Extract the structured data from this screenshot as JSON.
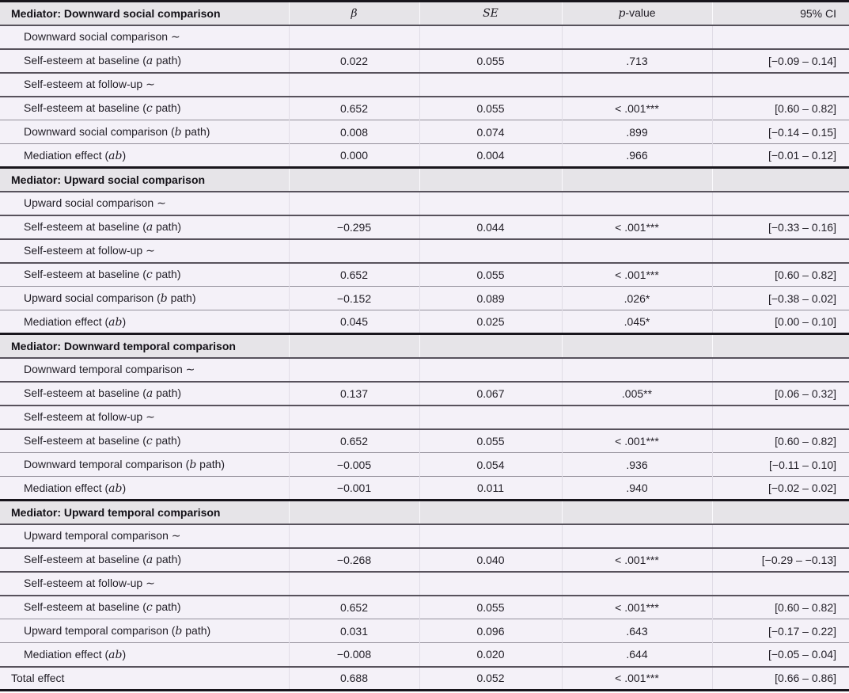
{
  "table": {
    "columns": {
      "beta": "β",
      "se": "SE",
      "p_pre": "p",
      "p_post": "-value",
      "ci": "95% CI"
    },
    "sections": [
      {
        "title": "Mediator: Downward social comparison",
        "rows": [
          {
            "type": "sub",
            "pre": "Downward social comparison ∼",
            "it": "",
            "post": "",
            "beta": "",
            "se": "",
            "p": "",
            "ci": ""
          },
          {
            "type": "data",
            "pre": "Self-esteem at baseline (",
            "it": "a",
            "post": " path)",
            "beta": "0.022",
            "se": "0.055",
            "p": ".713",
            "ci": "[−0.09 – 0.14]"
          },
          {
            "type": "sub",
            "pre": "Self-esteem at follow-up ∼",
            "it": "",
            "post": "",
            "beta": "",
            "se": "",
            "p": "",
            "ci": ""
          },
          {
            "type": "data",
            "pre": "Self-esteem at baseline (",
            "it": "c",
            "post": " path)",
            "beta": "0.652",
            "se": "0.055",
            "p": "< .001***",
            "ci": "[0.60 – 0.82]"
          },
          {
            "type": "data",
            "pre": "Downward social comparison (",
            "it": "b",
            "post": " path)",
            "beta": "0.008",
            "se": "0.074",
            "p": ".899",
            "ci": "[−0.14 – 0.15]"
          },
          {
            "type": "data",
            "pre": "Mediation effect (",
            "it": "ab",
            "post": ")",
            "beta": "0.000",
            "se": "0.004",
            "p": ".966",
            "ci": "[−0.01 – 0.12]"
          }
        ]
      },
      {
        "title": "Mediator: Upward social comparison",
        "rows": [
          {
            "type": "sub",
            "pre": "Upward social comparison ∼",
            "it": "",
            "post": "",
            "beta": "",
            "se": "",
            "p": "",
            "ci": ""
          },
          {
            "type": "data",
            "pre": "Self-esteem at baseline (",
            "it": "a",
            "post": " path)",
            "beta": "−0.295",
            "se": "0.044",
            "p": "< .001***",
            "ci": "[−0.33 – 0.16]"
          },
          {
            "type": "sub",
            "pre": "Self-esteem at follow-up ∼",
            "it": "",
            "post": "",
            "beta": "",
            "se": "",
            "p": "",
            "ci": ""
          },
          {
            "type": "data",
            "pre": "Self-esteem at baseline (",
            "it": "c",
            "post": " path)",
            "beta": "0.652",
            "se": "0.055",
            "p": "< .001***",
            "ci": "[0.60 – 0.82]"
          },
          {
            "type": "data",
            "pre": "Upward social comparison (",
            "it": "b",
            "post": " path)",
            "beta": "−0.152",
            "se": "0.089",
            "p": ".026*",
            "ci": "[−0.38 – 0.02]"
          },
          {
            "type": "data",
            "pre": "Mediation effect (",
            "it": "ab",
            "post": ")",
            "beta": "0.045",
            "se": "0.025",
            "p": ".045*",
            "ci": "[0.00 – 0.10]"
          }
        ]
      },
      {
        "title": "Mediator: Downward temporal comparison",
        "rows": [
          {
            "type": "sub",
            "pre": "Downward temporal comparison ∼",
            "it": "",
            "post": "",
            "beta": "",
            "se": "",
            "p": "",
            "ci": ""
          },
          {
            "type": "data",
            "pre": "Self-esteem at baseline (",
            "it": "a",
            "post": " path)",
            "beta": "0.137",
            "se": "0.067",
            "p": ".005**",
            "ci": "[0.06 – 0.32]"
          },
          {
            "type": "sub",
            "pre": "Self-esteem at follow-up ∼",
            "it": "",
            "post": "",
            "beta": "",
            "se": "",
            "p": "",
            "ci": ""
          },
          {
            "type": "data",
            "pre": "Self-esteem at baseline (",
            "it": "c",
            "post": " path)",
            "beta": "0.652",
            "se": "0.055",
            "p": "< .001***",
            "ci": "[0.60 – 0.82]"
          },
          {
            "type": "data",
            "pre": "Downward temporal comparison (",
            "it": "b",
            "post": " path)",
            "beta": "−0.005",
            "se": "0.054",
            "p": ".936",
            "ci": "[−0.11 – 0.10]"
          },
          {
            "type": "data",
            "pre": "Mediation effect (",
            "it": "ab",
            "post": ")",
            "beta": "−0.001",
            "se": "0.011",
            "p": ".940",
            "ci": "[−0.02 – 0.02]"
          }
        ]
      },
      {
        "title": "Mediator: Upward temporal comparison",
        "rows": [
          {
            "type": "sub",
            "pre": "Upward temporal comparison ∼",
            "it": "",
            "post": "",
            "beta": "",
            "se": "",
            "p": "",
            "ci": ""
          },
          {
            "type": "data",
            "pre": "Self-esteem at baseline (",
            "it": "a",
            "post": " path)",
            "beta": "−0.268",
            "se": "0.040",
            "p": "< .001***",
            "ci": "[−0.29 – −0.13]"
          },
          {
            "type": "sub",
            "pre": "Self-esteem at follow-up ∼",
            "it": "",
            "post": "",
            "beta": "",
            "se": "",
            "p": "",
            "ci": ""
          },
          {
            "type": "data",
            "pre": "Self-esteem at baseline (",
            "it": "c",
            "post": " path)",
            "beta": "0.652",
            "se": "0.055",
            "p": "< .001***",
            "ci": "[0.60 – 0.82]"
          },
          {
            "type": "data",
            "pre": "Upward temporal comparison (",
            "it": "b",
            "post": " path)",
            "beta": "0.031",
            "se": "0.096",
            "p": ".643",
            "ci": "[−0.17 – 0.22]"
          },
          {
            "type": "data",
            "pre": "Mediation effect (",
            "it": "ab",
            "post": ")",
            "beta": "−0.008",
            "se": "0.020",
            "p": ".644",
            "ci": "[−0.05 – 0.04]"
          }
        ]
      }
    ],
    "total": {
      "pre": "Total effect",
      "it": "",
      "post": "",
      "beta": "0.688",
      "se": "0.052",
      "p": "< .001***",
      "ci": "[0.66 – 0.86]"
    }
  }
}
